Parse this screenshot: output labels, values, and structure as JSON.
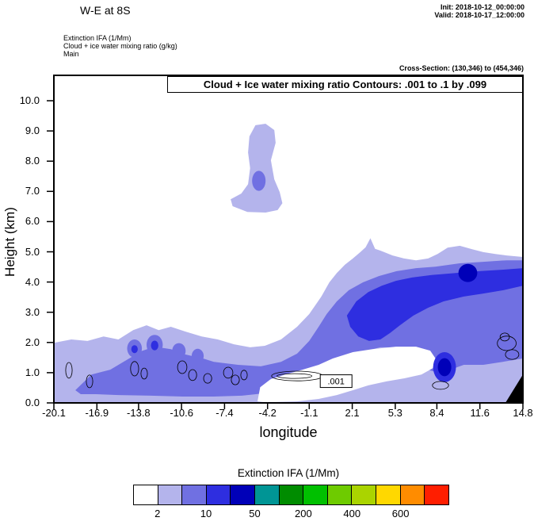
{
  "header": {
    "title": "W-E at 8S",
    "init_line": "Init: 2018-10-12_00:00:00",
    "valid_line": "Valid: 2018-10-17_12:00:00",
    "field_lines": [
      "Extinction IFA  (1/Mm)",
      "Cloud + ice water mixing ratio  (g/kg)",
      "Main"
    ],
    "cross_section": "Cross-Section: (130,346) to (454,346)"
  },
  "chart_data": {
    "type": "filled-contour-cross-section",
    "title": "Cloud + Ice water mixing ratio Contours: .001 to .1 by .099",
    "xlabel": "longitude",
    "ylabel": "Height (km)",
    "xlim": [
      -20.1,
      14.8
    ],
    "ylim": [
      0,
      10.84
    ],
    "x_ticks": [
      -20.1,
      -16.9,
      -13.8,
      -10.6,
      -7.4,
      -4.2,
      -1.1,
      2.1,
      5.3,
      8.4,
      11.6,
      14.8
    ],
    "y_ticks": [
      0,
      1,
      2,
      3,
      4,
      5,
      6,
      7,
      8,
      9,
      10
    ],
    "shading_field": "Extinction IFA (1/Mm)",
    "contour_field": "Cloud + Ice water mixing ratio (g/kg)",
    "contour_levels_note": ".001 to .1 by .099",
    "contour_label": ".001",
    "contour_label_pos": [
      0.9,
      0.72
    ],
    "colorbar": {
      "title": "Extinction IFA  (1/Mm)",
      "colors": [
        "#ffffff",
        "#b4b4ec",
        "#7070e2",
        "#2e2ee0",
        "#0000b8",
        "#009595",
        "#008c00",
        "#00c000",
        "#6ecb00",
        "#aad400",
        "#ffd800",
        "#ff8c00",
        "#ff1e00"
      ],
      "tick_labels": [
        "2",
        "10",
        "50",
        "200",
        "400",
        "600"
      ],
      "tick_positions": [
        1,
        3,
        5,
        7,
        9,
        11
      ]
    },
    "regions": [
      {
        "name": "light-main",
        "color": 1,
        "points": [
          [
            -20.1,
            1.99
          ],
          [
            -18.8,
            2.1
          ],
          [
            -17.6,
            2.05
          ],
          [
            -16.4,
            2.2
          ],
          [
            -15.3,
            2.1
          ],
          [
            -14.2,
            2.41
          ],
          [
            -13.2,
            2.57
          ],
          [
            -12.3,
            2.41
          ],
          [
            -11.4,
            2.52
          ],
          [
            -10.3,
            2.36
          ],
          [
            -9.1,
            2.2
          ],
          [
            -7.9,
            2.1
          ],
          [
            -6.7,
            1.94
          ],
          [
            -5.5,
            1.84
          ],
          [
            -4.4,
            1.89
          ],
          [
            -3.2,
            2.1
          ],
          [
            -2.0,
            2.52
          ],
          [
            -1.1,
            2.94
          ],
          [
            -0.2,
            3.52
          ],
          [
            0.4,
            3.99
          ],
          [
            0.95,
            4.3
          ],
          [
            1.55,
            4.57
          ],
          [
            2.15,
            4.78
          ],
          [
            2.7,
            4.99
          ],
          [
            3.1,
            5.15
          ],
          [
            3.45,
            5.45
          ],
          [
            3.8,
            5.1
          ],
          [
            4.2,
            5.04
          ],
          [
            5.1,
            4.88
          ],
          [
            5.95,
            4.78
          ],
          [
            6.85,
            4.72
          ],
          [
            7.75,
            4.78
          ],
          [
            8.45,
            4.93
          ],
          [
            9.2,
            5.14
          ],
          [
            10.1,
            5.2
          ],
          [
            11.0,
            5.09
          ],
          [
            11.85,
            4.99
          ],
          [
            12.75,
            4.93
          ],
          [
            13.6,
            4.88
          ],
          [
            14.8,
            4.83
          ],
          [
            14.8,
            0
          ],
          [
            -20.1,
            0
          ]
        ]
      },
      {
        "name": "light-plume",
        "color": 1,
        "points": [
          [
            -5.1,
            9.19
          ],
          [
            -4.35,
            9.24
          ],
          [
            -3.7,
            9.03
          ],
          [
            -3.6,
            8.61
          ],
          [
            -3.95,
            8.03
          ],
          [
            -3.7,
            7.4
          ],
          [
            -3.3,
            6.98
          ],
          [
            -3.1,
            6.61
          ],
          [
            -3.45,
            6.38
          ],
          [
            -4.35,
            6.3
          ],
          [
            -5.7,
            6.32
          ],
          [
            -6.8,
            6.51
          ],
          [
            -6.95,
            6.74
          ],
          [
            -6.15,
            6.93
          ],
          [
            -5.65,
            7.24
          ],
          [
            -5.5,
            7.77
          ],
          [
            -5.65,
            8.29
          ],
          [
            -5.55,
            8.82
          ]
        ]
      },
      {
        "name": "medium-main",
        "color": 2,
        "points": [
          [
            -18.5,
            0.42
          ],
          [
            -17.3,
            0.94
          ],
          [
            -15.9,
            1.1
          ],
          [
            -14.5,
            1.47
          ],
          [
            -13.6,
            1.71
          ],
          [
            -12.6,
            1.86
          ],
          [
            -11.4,
            1.78
          ],
          [
            -10.3,
            1.6
          ],
          [
            -9.0,
            1.47
          ],
          [
            -8.2,
            1.36
          ],
          [
            -6.4,
            1.26
          ],
          [
            -4.7,
            1.21
          ],
          [
            -3.2,
            1.36
          ],
          [
            -2.0,
            1.63
          ],
          [
            -1.1,
            2.05
          ],
          [
            -0.4,
            2.52
          ],
          [
            0.2,
            2.94
          ],
          [
            0.95,
            3.36
          ],
          [
            1.85,
            3.73
          ],
          [
            2.9,
            3.99
          ],
          [
            4.1,
            4.2
          ],
          [
            5.4,
            4.36
          ],
          [
            6.85,
            4.46
          ],
          [
            8.3,
            4.51
          ],
          [
            10.1,
            4.62
          ],
          [
            11.85,
            4.67
          ],
          [
            13.6,
            4.72
          ],
          [
            14.8,
            4.72
          ],
          [
            14.8,
            1.47
          ],
          [
            13.3,
            1.36
          ],
          [
            11.85,
            1.26
          ],
          [
            10.4,
            1.26
          ],
          [
            9.4,
            1.1
          ],
          [
            8.45,
            1.0
          ],
          [
            7.75,
            1.1
          ],
          [
            7.45,
            1.47
          ],
          [
            6.85,
            1.68
          ],
          [
            5.65,
            1.84
          ],
          [
            4.2,
            1.84
          ],
          [
            2.7,
            1.68
          ],
          [
            1.25,
            1.47
          ],
          [
            -0.05,
            1.21
          ],
          [
            -1.25,
            0.94
          ],
          [
            -2.4,
            0.73
          ],
          [
            -3.6,
            0.52
          ],
          [
            -4.65,
            0.31
          ],
          [
            -6.1,
            0.24
          ],
          [
            -8.2,
            0.21
          ],
          [
            -10.5,
            0.21
          ],
          [
            -12.9,
            0.24
          ],
          [
            -15.3,
            0.26
          ],
          [
            -17.0,
            0.29
          ],
          [
            -18.1,
            0.29
          ]
        ]
      },
      {
        "name": "white-hole",
        "color": 0,
        "points": [
          [
            -4.95,
            0.05
          ],
          [
            -4.75,
            0.52
          ],
          [
            -3.95,
            0.79
          ],
          [
            -2.9,
            0.94
          ],
          [
            -1.6,
            1.1
          ],
          [
            -0.4,
            1.26
          ],
          [
            0.65,
            1.47
          ],
          [
            2.15,
            1.68
          ],
          [
            3.6,
            1.78
          ],
          [
            5.35,
            1.86
          ],
          [
            6.85,
            1.86
          ],
          [
            7.9,
            1.73
          ],
          [
            8.3,
            1.47
          ],
          [
            8.1,
            1.15
          ],
          [
            7.25,
            0.94
          ],
          [
            5.95,
            0.81
          ],
          [
            4.65,
            0.71
          ],
          [
            3.3,
            0.58
          ],
          [
            2.15,
            0.42
          ],
          [
            0.95,
            0.26
          ],
          [
            -0.4,
            0.13
          ],
          [
            -2.0,
            0.05
          ],
          [
            -3.6,
            0.03
          ],
          [
            -4.55,
            0.03
          ]
        ]
      },
      {
        "name": "dark-core",
        "color": 3,
        "points": [
          [
            1.7,
            2.89
          ],
          [
            2.4,
            3.36
          ],
          [
            3.3,
            3.67
          ],
          [
            4.3,
            3.88
          ],
          [
            5.35,
            4.04
          ],
          [
            6.55,
            4.15
          ],
          [
            8.0,
            4.23
          ],
          [
            9.8,
            4.3
          ],
          [
            11.55,
            4.36
          ],
          [
            13.35,
            4.41
          ],
          [
            14.8,
            4.46
          ],
          [
            14.8,
            3.88
          ],
          [
            13.35,
            3.73
          ],
          [
            11.85,
            3.62
          ],
          [
            10.4,
            3.52
          ],
          [
            8.9,
            3.36
          ],
          [
            7.75,
            3.15
          ],
          [
            6.65,
            2.89
          ],
          [
            5.65,
            2.57
          ],
          [
            4.9,
            2.31
          ],
          [
            4.2,
            2.1
          ],
          [
            3.35,
            2.05
          ],
          [
            2.55,
            2.2
          ],
          [
            1.95,
            2.52
          ]
        ]
      }
    ],
    "ellipses": [
      [
        -4.85,
        7.35,
        0.5,
        0.33,
        2
      ],
      [
        -14.1,
        1.8,
        0.55,
        0.3,
        2
      ],
      [
        -12.6,
        1.92,
        0.6,
        0.33,
        2
      ],
      [
        -10.8,
        1.72,
        0.5,
        0.26,
        2
      ],
      [
        -9.4,
        1.55,
        0.45,
        0.24,
        2
      ],
      [
        -14.1,
        1.78,
        0.24,
        0.13,
        3
      ],
      [
        -12.6,
        1.9,
        0.28,
        0.16,
        3
      ],
      [
        8.97,
        1.18,
        0.85,
        0.5,
        3
      ],
      [
        8.97,
        1.18,
        0.5,
        0.3,
        4
      ],
      [
        10.7,
        4.3,
        0.7,
        0.3,
        4
      ]
    ],
    "contour_ellipses": [
      [
        -18.98,
        1.08,
        0.24,
        0.26
      ],
      [
        -17.45,
        0.71,
        0.24,
        0.21
      ],
      [
        -14.09,
        1.13,
        0.3,
        0.24
      ],
      [
        -13.38,
        0.97,
        0.24,
        0.18
      ],
      [
        -10.55,
        1.18,
        0.35,
        0.21
      ],
      [
        -9.78,
        0.92,
        0.3,
        0.18
      ],
      [
        -8.66,
        0.81,
        0.3,
        0.16
      ],
      [
        -7.13,
        1.0,
        0.35,
        0.18
      ],
      [
        -6.6,
        0.76,
        0.3,
        0.16
      ],
      [
        -5.95,
        0.92,
        0.24,
        0.16
      ],
      [
        -2.0,
        0.89,
        1.9,
        0.16
      ],
      [
        -2.2,
        0.89,
        1.3,
        0.08
      ],
      [
        13.6,
        1.97,
        0.7,
        0.24
      ],
      [
        14.0,
        1.6,
        0.5,
        0.16
      ],
      [
        13.45,
        2.18,
        0.35,
        0.13
      ],
      [
        8.67,
        0.58,
        0.6,
        0.13
      ]
    ],
    "terrain": [
      [
        13.5,
        0
      ],
      [
        14.8,
        0
      ],
      [
        14.8,
        0.94
      ]
    ]
  }
}
